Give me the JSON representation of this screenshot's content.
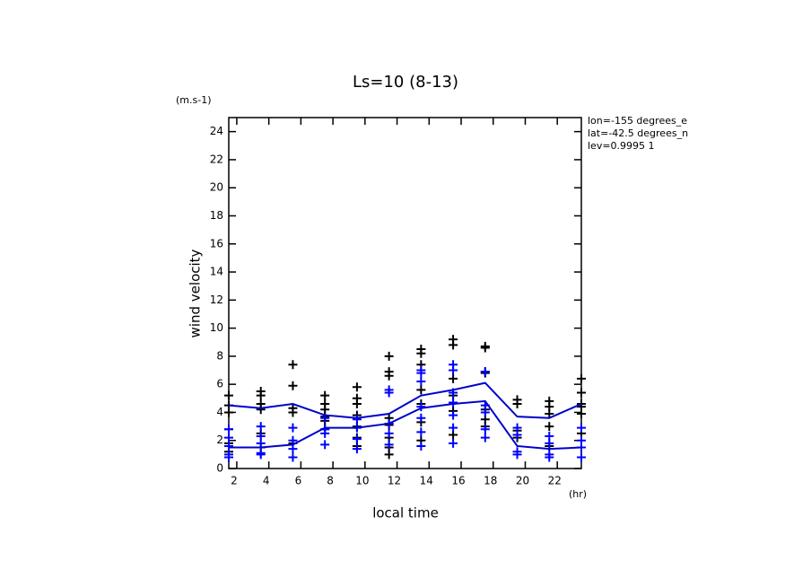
{
  "chart_data": {
    "type": "scatter",
    "title": "Ls=10 (8-13)",
    "y_unit": "(m.s-1)",
    "y_label": "wind velocity",
    "x_label": "local time",
    "x_unit": "(hr)",
    "annotations": [
      "lon=-155 degrees_e",
      "lat=-42.5 degrees_n",
      "lev=0.9995 1"
    ],
    "xlim": [
      1.5,
      23.5
    ],
    "ylim": [
      0,
      25
    ],
    "xticks": [
      2,
      4,
      6,
      8,
      10,
      12,
      14,
      16,
      18,
      20,
      22
    ],
    "yticks": [
      0,
      2,
      4,
      6,
      8,
      10,
      12,
      14,
      16,
      18,
      20,
      22,
      24
    ],
    "grid": false,
    "series": [
      {
        "color": "#000000",
        "marker": "plus",
        "x": [
          1.5,
          1.5,
          1.5,
          1.5,
          1.5,
          1.5,
          3.5,
          3.5,
          3.5,
          3.5,
          3.5,
          3.5,
          5.5,
          5.5,
          5.5,
          5.5,
          5.5,
          7.5,
          7.5,
          7.5,
          7.5,
          7.5,
          7.5,
          9.5,
          9.5,
          9.5,
          9.5,
          9.5,
          9.5,
          9.5,
          11.5,
          11.5,
          11.5,
          11.5,
          11.5,
          11.5,
          11.5,
          11.5,
          13.5,
          13.5,
          13.5,
          13.5,
          13.5,
          13.5,
          13.5,
          15.5,
          15.5,
          15.5,
          15.5,
          15.5,
          15.5,
          17.5,
          17.5,
          17.5,
          17.5,
          17.5,
          17.5,
          17.5,
          19.5,
          19.5,
          19.5,
          19.5,
          21.5,
          21.5,
          21.5,
          21.5,
          21.5,
          23.5,
          23.5,
          23.5,
          23.5,
          23.5,
          23.5
        ],
        "values": [
          5.2,
          4.5,
          4.0,
          2.8,
          1.8,
          1.2,
          5.5,
          5.2,
          4.6,
          4.2,
          2.5,
          1.5,
          7.4,
          5.9,
          4.3,
          4.0,
          1.8,
          5.2,
          4.6,
          4.2,
          3.7,
          3.4,
          2.8,
          5.8,
          5.0,
          4.6,
          3.8,
          3.0,
          2.2,
          1.6,
          8.0,
          6.9,
          6.6,
          3.6,
          3.1,
          2.2,
          1.5,
          1.0,
          8.5,
          8.2,
          7.4,
          5.6,
          4.6,
          3.3,
          2.0,
          9.2,
          8.8,
          6.4,
          5.2,
          4.1,
          2.4,
          8.7,
          8.6,
          6.9,
          6.8,
          4.2,
          3.5,
          3.0,
          4.9,
          4.6,
          2.7,
          2.2,
          4.8,
          4.4,
          3.9,
          3.0,
          1.6,
          6.4,
          5.4,
          4.6,
          4.4,
          3.9,
          2.5
        ]
      },
      {
        "color": "#0000ff",
        "marker": "plus",
        "x": [
          1.5,
          1.5,
          1.5,
          1.5,
          1.5,
          3.5,
          3.5,
          3.5,
          3.5,
          3.5,
          5.5,
          5.5,
          5.5,
          5.5,
          7.5,
          7.5,
          7.5,
          7.5,
          9.5,
          9.5,
          9.5,
          9.5,
          11.5,
          11.5,
          11.5,
          11.5,
          11.5,
          13.5,
          13.5,
          13.5,
          13.5,
          13.5,
          13.5,
          13.5,
          15.5,
          15.5,
          15.5,
          15.5,
          15.5,
          15.5,
          15.5,
          17.5,
          17.5,
          17.5,
          17.5,
          17.5,
          19.5,
          19.5,
          19.5,
          19.5,
          21.5,
          21.5,
          21.5,
          21.5,
          23.5,
          23.5,
          23.5,
          23.5
        ],
        "values": [
          2.8,
          2.2,
          1.6,
          1.0,
          0.8,
          3.0,
          2.3,
          1.8,
          1.1,
          1.0,
          2.9,
          2.0,
          1.4,
          0.8,
          3.6,
          2.8,
          2.5,
          1.7,
          3.5,
          2.9,
          2.1,
          1.4,
          5.6,
          5.4,
          3.2,
          2.5,
          1.7,
          7.0,
          6.8,
          6.2,
          4.4,
          3.6,
          2.6,
          1.6,
          7.4,
          7.0,
          5.4,
          4.7,
          3.8,
          2.9,
          1.8,
          6.9,
          4.5,
          4.0,
          2.8,
          2.2,
          2.9,
          2.4,
          1.2,
          1.0,
          2.3,
          1.8,
          1.0,
          0.8,
          2.9,
          2.0,
          1.5,
          0.8
        ]
      },
      {
        "color": "#0000cc",
        "marker": "line",
        "x": [
          1.5,
          3.5,
          5.5,
          7.5,
          9.5,
          11.5,
          13.5,
          15.5,
          17.5,
          19.5,
          21.5,
          23.5
        ],
        "values": [
          4.5,
          4.3,
          4.6,
          3.8,
          3.6,
          3.9,
          5.2,
          5.6,
          6.1,
          3.7,
          3.6,
          4.6
        ]
      },
      {
        "color": "#0000cc",
        "marker": "line",
        "x": [
          1.5,
          3.5,
          5.5,
          7.5,
          9.5,
          11.5,
          13.5,
          15.5,
          17.5,
          19.5,
          21.5,
          23.5
        ],
        "values": [
          1.5,
          1.5,
          1.7,
          2.9,
          2.9,
          3.2,
          4.3,
          4.6,
          4.8,
          1.6,
          1.4,
          1.5
        ]
      }
    ]
  }
}
